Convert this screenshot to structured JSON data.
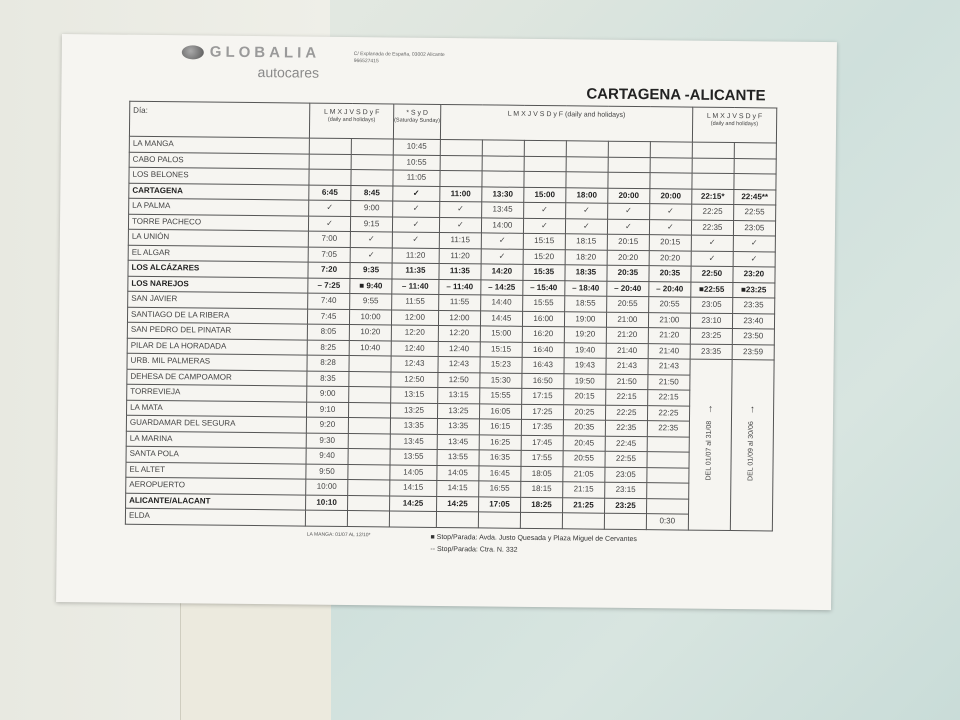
{
  "header": {
    "brand": "GLOBALIA",
    "brand_sub": "autocares",
    "address": "C/ Explanada de España, 03002 Alicante",
    "phone": "966527415",
    "title": "CARTAGENA -ALICANTE"
  },
  "table": {
    "day_label": "Día:",
    "groups": [
      {
        "days": "L M X J V S D y F",
        "note": "(daily and holidays)",
        "span": 2
      },
      {
        "days": "* S y D",
        "note": "(Saturday Sunday)",
        "span": 1
      },
      {
        "days": "L M X J V S D y F (daily and holidays)",
        "note": "",
        "span": 6
      },
      {
        "days": "L M X J V S D y F",
        "note": "(daily and holidays)",
        "span": 2
      }
    ],
    "rows": [
      {
        "stop": "LA MANGA",
        "times": [
          "",
          "",
          "10:45",
          "",
          "",
          "",
          "",
          "",
          "",
          "",
          ""
        ]
      },
      {
        "stop": "CABO PALOS",
        "times": [
          "",
          "",
          "10:55",
          "",
          "",
          "",
          "",
          "",
          "",
          "",
          ""
        ]
      },
      {
        "stop": "LOS BELONES",
        "times": [
          "",
          "",
          "11:05",
          "",
          "",
          "",
          "",
          "",
          "",
          "",
          ""
        ]
      },
      {
        "stop": "CARTAGENA",
        "bold": true,
        "times": [
          "6:45",
          "8:45",
          "✓",
          "11:00",
          "13:30",
          "15:00",
          "18:00",
          "20:00",
          "20:00",
          "22:15*",
          "22:45**"
        ]
      },
      {
        "stop": "LA PALMA",
        "times": [
          "✓",
          "9:00",
          "✓",
          "✓",
          "13:45",
          "✓",
          "✓",
          "✓",
          "✓",
          "22:25",
          "22:55"
        ]
      },
      {
        "stop": "TORRE PACHECO",
        "times": [
          "✓",
          "9:15",
          "✓",
          "✓",
          "14:00",
          "✓",
          "✓",
          "✓",
          "✓",
          "22:35",
          "23:05"
        ]
      },
      {
        "stop": "LA UNIÓN",
        "times": [
          "7:00",
          "✓",
          "✓",
          "11:15",
          "✓",
          "15:15",
          "18:15",
          "20:15",
          "20:15",
          "✓",
          "✓"
        ]
      },
      {
        "stop": "EL ALGAR",
        "times": [
          "7:05",
          "✓",
          "11:20",
          "11:20",
          "✓",
          "15:20",
          "18:20",
          "20:20",
          "20:20",
          "✓",
          "✓"
        ]
      },
      {
        "stop": "LOS ALCÁZARES",
        "bold": true,
        "times": [
          "7:20",
          "9:35",
          "11:35",
          "11:35",
          "14:20",
          "15:35",
          "18:35",
          "20:35",
          "20:35",
          "22:50",
          "23:20"
        ]
      },
      {
        "stop": "LOS NAREJOS",
        "bold": true,
        "times": [
          "– 7:25",
          "■ 9:40",
          "– 11:40",
          "– 11:40",
          "– 14:25",
          "– 15:40",
          "– 18:40",
          "– 20:40",
          "– 20:40",
          "■22:55",
          "■23:25"
        ]
      },
      {
        "stop": "SAN JAVIER",
        "times": [
          "7:40",
          "9:55",
          "11:55",
          "11:55",
          "14:40",
          "15:55",
          "18:55",
          "20:55",
          "20:55",
          "23:05",
          "23:35"
        ]
      },
      {
        "stop": "SANTIAGO DE LA RIBERA",
        "times": [
          "7:45",
          "10:00",
          "12:00",
          "12:00",
          "14:45",
          "16:00",
          "19:00",
          "21:00",
          "21:00",
          "23:10",
          "23:40"
        ]
      },
      {
        "stop": "SAN PEDRO DEL PINATAR",
        "times": [
          "8:05",
          "10:20",
          "12:20",
          "12:20",
          "15:00",
          "16:20",
          "19:20",
          "21:20",
          "21:20",
          "23:25",
          "23:50"
        ]
      },
      {
        "stop": "PILAR DE LA HORADADA",
        "times": [
          "8:25",
          "10:40",
          "12:40",
          "12:40",
          "15:15",
          "16:40",
          "19:40",
          "21:40",
          "21:40",
          "23:35",
          "23:59"
        ]
      },
      {
        "stop": "URB. MIL PALMERAS",
        "times": [
          "8:28",
          "",
          "12:43",
          "12:43",
          "15:23",
          "16:43",
          "19:43",
          "21:43",
          "21:43"
        ]
      },
      {
        "stop": "DEHESA DE CAMPOAMOR",
        "times": [
          "8:35",
          "",
          "12:50",
          "12:50",
          "15:30",
          "16:50",
          "19:50",
          "21:50",
          "21:50"
        ]
      },
      {
        "stop": "TORREVIEJA",
        "times": [
          "9:00",
          "",
          "13:15",
          "13:15",
          "15:55",
          "17:15",
          "20:15",
          "22:15",
          "22:15"
        ]
      },
      {
        "stop": "LA MATA",
        "times": [
          "9:10",
          "",
          "13:25",
          "13:25",
          "16:05",
          "17:25",
          "20:25",
          "22:25",
          "22:25"
        ]
      },
      {
        "stop": "GUARDAMAR DEL SEGURA",
        "times": [
          "9:20",
          "",
          "13:35",
          "13:35",
          "16:15",
          "17:35",
          "20:35",
          "22:35",
          "22:35"
        ]
      },
      {
        "stop": "LA MARINA",
        "times": [
          "9:30",
          "",
          "13:45",
          "13:45",
          "16:25",
          "17:45",
          "20:45",
          "22:45",
          ""
        ]
      },
      {
        "stop": "SANTA POLA",
        "times": [
          "9:40",
          "",
          "13:55",
          "13:55",
          "16:35",
          "17:55",
          "20:55",
          "22:55",
          ""
        ]
      },
      {
        "stop": "EL ALTET",
        "times": [
          "9:50",
          "",
          "14:05",
          "14:05",
          "16:45",
          "18:05",
          "21:05",
          "23:05",
          ""
        ]
      },
      {
        "stop": "AEROPUERTO",
        "times": [
          "10:00",
          "",
          "14:15",
          "14:15",
          "16:55",
          "18:15",
          "21:15",
          "23:15",
          ""
        ]
      },
      {
        "stop": "ALICANTE/ALACANT",
        "bold": true,
        "times": [
          "10:10",
          "",
          "14:25",
          "14:25",
          "17:05",
          "18:25",
          "21:25",
          "23:25",
          ""
        ]
      },
      {
        "stop": "ELDA",
        "times": [
          "",
          "",
          "",
          "",
          "",
          "",
          "",
          "",
          "0:30"
        ]
      }
    ],
    "period_notes": [
      "DEL 01/07 al 31/08",
      "DEL 01/09 al 30/06"
    ]
  },
  "footer": {
    "la_manga_note": "LA MANGA: 01/07 AL 12/10*",
    "square_note": "■ Stop/Parada: Avda. Justo Quesada y Plaza Miguel de Cervantes",
    "dash_note": "-- Stop/Parada: Ctra. N. 332"
  }
}
